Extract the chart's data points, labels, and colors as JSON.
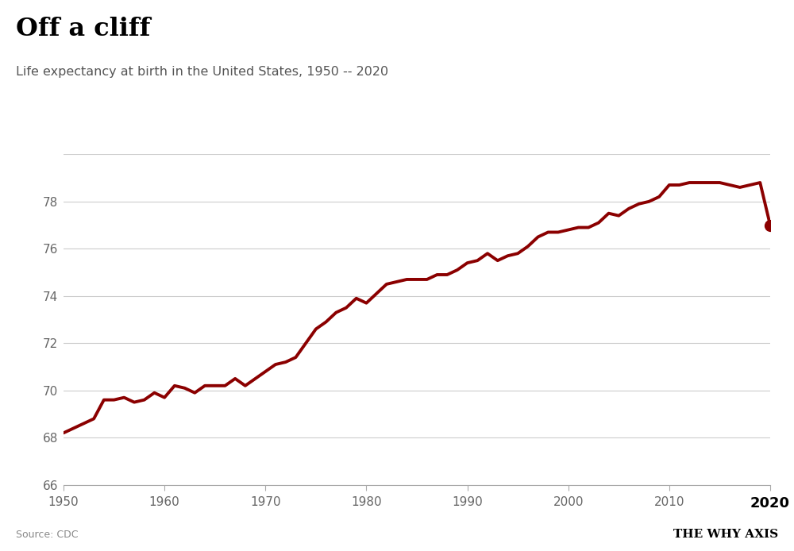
{
  "title": "Off a cliff",
  "subtitle": "Life expectancy at birth in the United States, 1950 -- 2020",
  "source": "Source: CDC",
  "credit": "THE WHY AXIS",
  "line_color": "#8B0000",
  "background_color": "#ffffff",
  "grid_color": "#cccccc",
  "xlim": [
    1950,
    2020
  ],
  "ylim": [
    66,
    80
  ],
  "yticks": [
    66,
    68,
    70,
    72,
    74,
    76,
    78,
    80
  ],
  "ytick_labels": [
    "66",
    "68",
    "70",
    "72",
    "74",
    "76",
    "78",
    ""
  ],
  "xticks": [
    1950,
    1960,
    1970,
    1980,
    1990,
    2000,
    2010,
    2020
  ],
  "data": {
    "years": [
      1950,
      1951,
      1952,
      1953,
      1954,
      1955,
      1956,
      1957,
      1958,
      1959,
      1960,
      1961,
      1962,
      1963,
      1964,
      1965,
      1966,
      1967,
      1968,
      1969,
      1970,
      1971,
      1972,
      1973,
      1974,
      1975,
      1976,
      1977,
      1978,
      1979,
      1980,
      1981,
      1982,
      1983,
      1984,
      1985,
      1986,
      1987,
      1988,
      1989,
      1990,
      1991,
      1992,
      1993,
      1994,
      1995,
      1996,
      1997,
      1998,
      1999,
      2000,
      2001,
      2002,
      2003,
      2004,
      2005,
      2006,
      2007,
      2008,
      2009,
      2010,
      2011,
      2012,
      2013,
      2014,
      2015,
      2016,
      2017,
      2018,
      2019,
      2020
    ],
    "values": [
      68.2,
      68.4,
      68.6,
      68.8,
      69.6,
      69.6,
      69.7,
      69.5,
      69.6,
      69.9,
      69.7,
      70.2,
      70.1,
      69.9,
      70.2,
      70.2,
      70.2,
      70.5,
      70.2,
      70.5,
      70.8,
      71.1,
      71.2,
      71.4,
      72.0,
      72.6,
      72.9,
      73.3,
      73.5,
      73.9,
      73.7,
      74.1,
      74.5,
      74.6,
      74.7,
      74.7,
      74.7,
      74.9,
      74.9,
      75.1,
      75.4,
      75.5,
      75.8,
      75.5,
      75.7,
      75.8,
      76.1,
      76.5,
      76.7,
      76.7,
      76.8,
      76.9,
      76.9,
      77.1,
      77.5,
      77.4,
      77.7,
      77.9,
      78.0,
      78.2,
      78.7,
      78.7,
      78.8,
      78.8,
      78.8,
      78.8,
      78.7,
      78.6,
      78.7,
      78.8,
      77.0
    ]
  }
}
